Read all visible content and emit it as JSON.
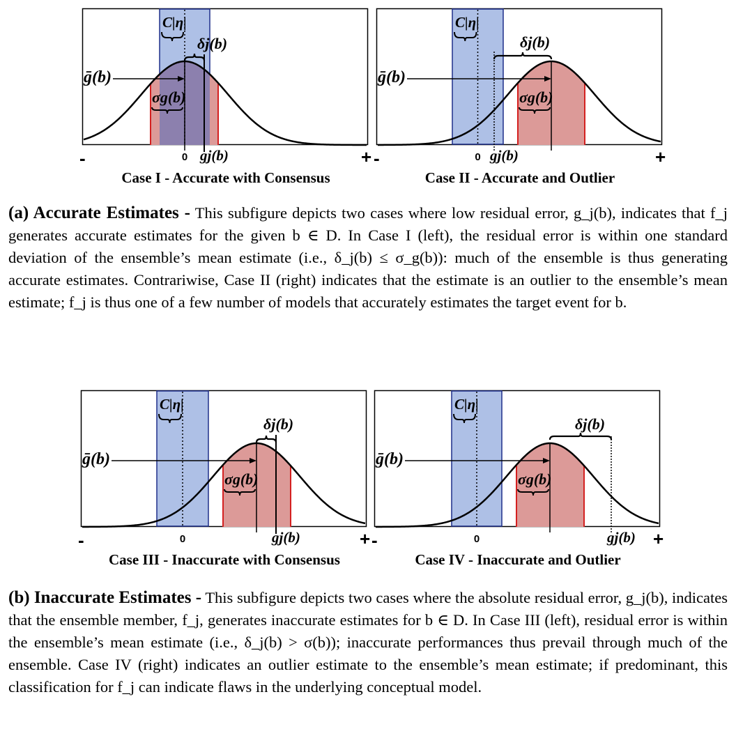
{
  "panels": [
    {
      "id": "case-1",
      "caption": "Case I - Accurate with Consensus",
      "label_c": "C|η|",
      "label_delta": "δj(b)",
      "label_sigma": "σg(b)",
      "label_gbar": "ḡ(b)",
      "label_g": "gj(b)",
      "tick_zero": "0",
      "tick_minus": "-",
      "tick_plus": "+"
    },
    {
      "id": "case-2",
      "caption": "Case II - Accurate and Outlier",
      "label_c": "C|η|",
      "label_delta": "δj(b)",
      "label_sigma": "σg(b)",
      "label_gbar": "ḡ(b)",
      "label_g": "gj(b)",
      "tick_zero": "0",
      "tick_minus": "-",
      "tick_plus": "+"
    },
    {
      "id": "case-3",
      "caption": "Case III - Inaccurate with Consensus",
      "label_c": "C|η|",
      "label_delta": "δj(b)",
      "label_sigma": "σg(b)",
      "label_gbar": "ḡ(b)",
      "label_g": "gj(b)",
      "tick_zero": "0",
      "tick_minus": "-",
      "tick_plus": "+"
    },
    {
      "id": "case-4",
      "caption": "Case IV - Inaccurate and Outlier",
      "label_c": "C|η|",
      "label_delta": "δj(b)",
      "label_sigma": "σg(b)",
      "label_gbar": "ḡ(b)",
      "label_g": "gj(b)",
      "tick_zero": "0",
      "tick_minus": "-",
      "tick_plus": "+"
    }
  ],
  "colors": {
    "consensus_band": "#aec0e6",
    "consensus_border": "#1f2f8a",
    "sigma_band": "#dc9a98",
    "sigma_border": "#d42020",
    "overlap": "#8c80ae"
  },
  "subfig_a": {
    "label": "(a) Accurate Estimates -",
    "text": " This subfigure depicts two cases where low residual error, g_j(b), indicates that f_j generates accurate estimates for the given b ∈ D. In Case I (left), the residual error is within one standard deviation of the ensemble’s mean estimate (i.e., δ_j(b) ≤ σ_g(b)): much of the ensemble is thus generating accurate estimates. Contrariwise, Case II (right) indicates that the estimate is an outlier to the ensemble’s mean estimate; f_j is thus one of a few number of models that accurately estimates the target event for b."
  },
  "subfig_b": {
    "label": "(b) Inaccurate Estimates -",
    "text": " This subfigure depicts two cases where the absolute residual error, g_j(b), indicates that the ensemble member, f_j, generates inaccurate estimates for b ∈ D. In Case III (left), residual error is within the ensemble’s mean estimate (i.e., δ_j(b) > σ(b)); inaccurate performances thus prevail through much of the ensemble. Case IV (right) indicates an outlier estimate to the ensemble’s mean estimate; if predominant, this classification for f_j can indicate flaws in the underlying conceptual model."
  }
}
